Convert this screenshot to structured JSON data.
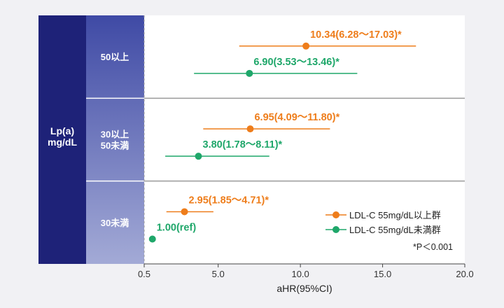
{
  "chart_data": {
    "type": "forest",
    "row_header": [
      "Lp(a)",
      "mg/dL"
    ],
    "groups": [
      {
        "label": [
          "50以上"
        ],
        "rows": [
          {
            "series": 0,
            "hr": 10.34,
            "lo": 6.28,
            "hi": 17.03,
            "label": "10.34(6.28～17.03)*"
          },
          {
            "series": 1,
            "hr": 6.9,
            "lo": 3.53,
            "hi": 13.46,
            "label": "6.90(3.53～13.46)*"
          }
        ]
      },
      {
        "label": [
          "30以上",
          "50未満"
        ],
        "rows": [
          {
            "series": 0,
            "hr": 6.95,
            "lo": 4.09,
            "hi": 11.8,
            "label": "6.95(4.09～11.80)*"
          },
          {
            "series": 1,
            "hr": 3.8,
            "lo": 1.78,
            "hi": 8.11,
            "label": "3.80(1.78～8.11)*"
          }
        ]
      },
      {
        "label": [
          "30未満"
        ],
        "rows": [
          {
            "series": 0,
            "hr": 2.95,
            "lo": 1.85,
            "hi": 4.71,
            "label": "2.95(1.85～4.71)*"
          },
          {
            "series": 1,
            "hr": 1.0,
            "lo": null,
            "hi": null,
            "label": "1.00(ref)"
          }
        ]
      }
    ],
    "series": [
      {
        "name": "LDL-C 55mg/dL以上群",
        "color": "#ee7d1b"
      },
      {
        "name": "LDL-C 55mg/dL未満群",
        "color": "#1fa76a"
      }
    ],
    "x_ticks": [
      "0.5",
      "5.0",
      "10.0",
      "15.0",
      "20.0"
    ],
    "xlim": [
      0.5,
      20.0
    ],
    "reference_x": 0.5,
    "xlabel": "aHR(95%CI)",
    "footnote": "*P＜0.001",
    "legend_position": "right"
  }
}
